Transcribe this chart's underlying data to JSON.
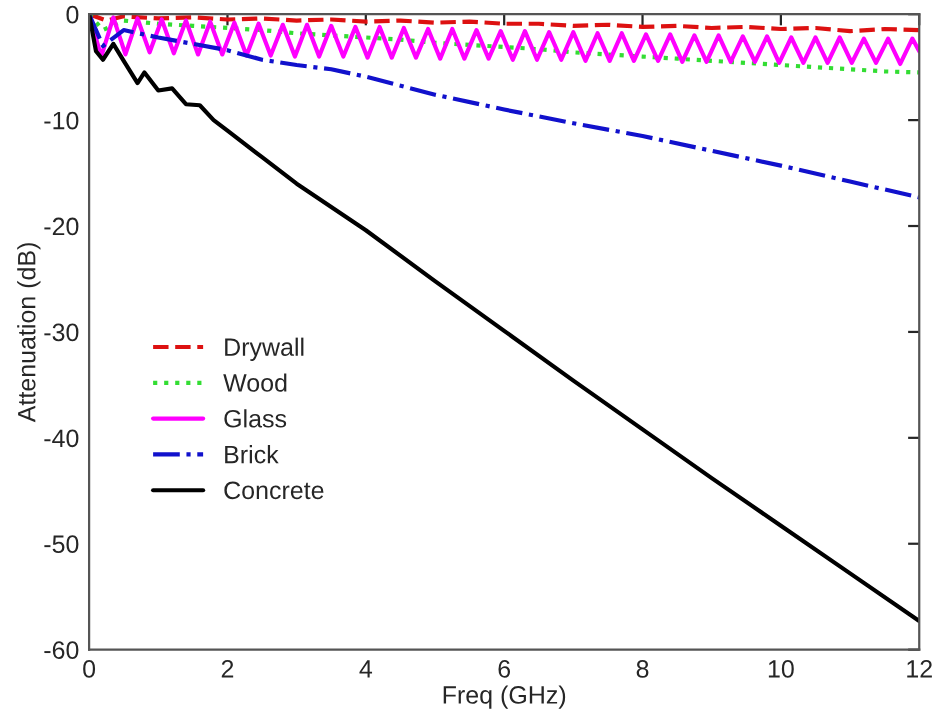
{
  "chart_data": {
    "type": "line",
    "xlabel": "Freq (GHz)",
    "ylabel": "Attenuation (dB)",
    "xlim": [
      0,
      12
    ],
    "ylim": [
      -60,
      0
    ],
    "xticks": [
      0,
      2,
      4,
      6,
      8,
      10,
      12
    ],
    "yticks": [
      -60,
      -50,
      -40,
      -30,
      -20,
      -10,
      0
    ],
    "grid": false,
    "legend": "center left",
    "marker": "none",
    "series": [
      {
        "name": "Drywall",
        "color": "#dd1111",
        "line_style": "dashed",
        "x": [
          0,
          0.25,
          0.5,
          1,
          1.5,
          2,
          2.5,
          3,
          3.5,
          4,
          4.5,
          5,
          5.5,
          6,
          6.5,
          7,
          7.5,
          8,
          8.5,
          9,
          9.5,
          10,
          10.5,
          11,
          11.5,
          12
        ],
        "values": [
          0,
          -0.6,
          -0.2,
          -0.4,
          -0.3,
          -0.5,
          -0.4,
          -0.6,
          -0.5,
          -0.7,
          -0.6,
          -0.8,
          -0.7,
          -0.9,
          -0.9,
          -1.1,
          -1.0,
          -1.2,
          -1.1,
          -1.3,
          -1.2,
          -1.4,
          -1.3,
          -1.6,
          -1.4,
          -1.5
        ]
      },
      {
        "name": "Wood",
        "color": "#33dd33",
        "line_style": "dotted",
        "x": [
          0,
          0.2,
          0.5,
          1,
          1.5,
          2,
          2.5,
          3,
          3.5,
          4,
          4.5,
          5,
          5.5,
          6,
          6.5,
          7,
          7.5,
          8,
          8.5,
          9,
          9.5,
          10,
          10.5,
          11,
          11.5,
          12
        ],
        "values": [
          0,
          -1.5,
          -0.6,
          -0.9,
          -1.1,
          -1.3,
          -1.5,
          -1.8,
          -2.0,
          -2.2,
          -2.4,
          -2.7,
          -2.9,
          -3.1,
          -3.3,
          -3.6,
          -3.8,
          -4.0,
          -4.2,
          -4.4,
          -4.6,
          -4.8,
          -5.0,
          -5.2,
          -5.4,
          -5.5
        ]
      },
      {
        "name": "Glass",
        "color": "#ff00ff",
        "line_style": "solid",
        "x": [
          0,
          0.175,
          0.35,
          0.525,
          0.7,
          0.875,
          1.05,
          1.225,
          1.4,
          1.575,
          1.75,
          1.925,
          2.1,
          2.275,
          2.45,
          2.625,
          2.8,
          2.975,
          3.15,
          3.325,
          3.5,
          3.675,
          3.85,
          4.025,
          4.2,
          4.375,
          4.55,
          4.725,
          4.9,
          5.075,
          5.25,
          5.425,
          5.6,
          5.775,
          5.95,
          6.125,
          6.3,
          6.475,
          6.65,
          6.825,
          7.0,
          7.175,
          7.35,
          7.525,
          7.7,
          7.875,
          8.05,
          8.225,
          8.4,
          8.575,
          8.75,
          8.925,
          9.1,
          9.275,
          9.45,
          9.625,
          9.8,
          9.975,
          10.15,
          10.325,
          10.5,
          10.675,
          10.85,
          11.025,
          11.2,
          11.375,
          11.55,
          11.725,
          11.9,
          12.0
        ],
        "values": [
          0,
          -4.0,
          -0.3,
          -3.8,
          -0.4,
          -3.6,
          -0.5,
          -3.7,
          -0.6,
          -3.8,
          -0.7,
          -3.8,
          -0.8,
          -3.9,
          -0.9,
          -3.9,
          -1.0,
          -4.0,
          -1.0,
          -4.0,
          -1.1,
          -4.0,
          -1.2,
          -4.1,
          -1.2,
          -4.1,
          -1.3,
          -4.1,
          -1.4,
          -4.2,
          -1.4,
          -4.2,
          -1.5,
          -4.2,
          -1.6,
          -4.3,
          -1.6,
          -4.3,
          -1.7,
          -4.3,
          -1.7,
          -4.4,
          -1.8,
          -4.4,
          -1.8,
          -4.4,
          -1.9,
          -4.4,
          -1.9,
          -4.5,
          -2.0,
          -4.5,
          -2.0,
          -4.5,
          -2.1,
          -4.5,
          -2.1,
          -4.6,
          -2.2,
          -4.6,
          -2.2,
          -4.6,
          -2.2,
          -4.6,
          -2.3,
          -4.6,
          -2.3,
          -4.7,
          -2.3,
          -3.5
        ]
      },
      {
        "name": "Brick",
        "color": "#1111cc",
        "line_style": "dashdot",
        "x": [
          0,
          0.2,
          0.5,
          1,
          1.5,
          2,
          2.5,
          3,
          3.5,
          4,
          5,
          6,
          7,
          8,
          9,
          10,
          11,
          12
        ],
        "values": [
          0,
          -3.0,
          -1.5,
          -2.2,
          -2.8,
          -3.4,
          -4.3,
          -4.8,
          -5.2,
          -5.9,
          -7.6,
          -9.0,
          -10.3,
          -11.5,
          -12.9,
          -14.3,
          -15.8,
          -17.3
        ]
      },
      {
        "name": "Concrete",
        "color": "#000000",
        "line_style": "solid",
        "x": [
          0,
          0.1,
          0.2,
          0.35,
          0.5,
          0.7,
          0.8,
          1.0,
          1.2,
          1.4,
          1.6,
          1.8,
          2.0,
          2.5,
          3,
          4,
          5,
          6,
          7,
          8,
          9,
          10,
          11,
          12
        ],
        "values": [
          0,
          -3.5,
          -4.3,
          -2.8,
          -4.4,
          -6.5,
          -5.5,
          -7.2,
          -7.0,
          -8.5,
          -8.6,
          -10.0,
          -11.0,
          -13.5,
          -16.0,
          -20.4,
          -25.2,
          -29.9,
          -34.6,
          -39.2,
          -43.8,
          -48.3,
          -52.8,
          -57.3
        ]
      }
    ]
  }
}
